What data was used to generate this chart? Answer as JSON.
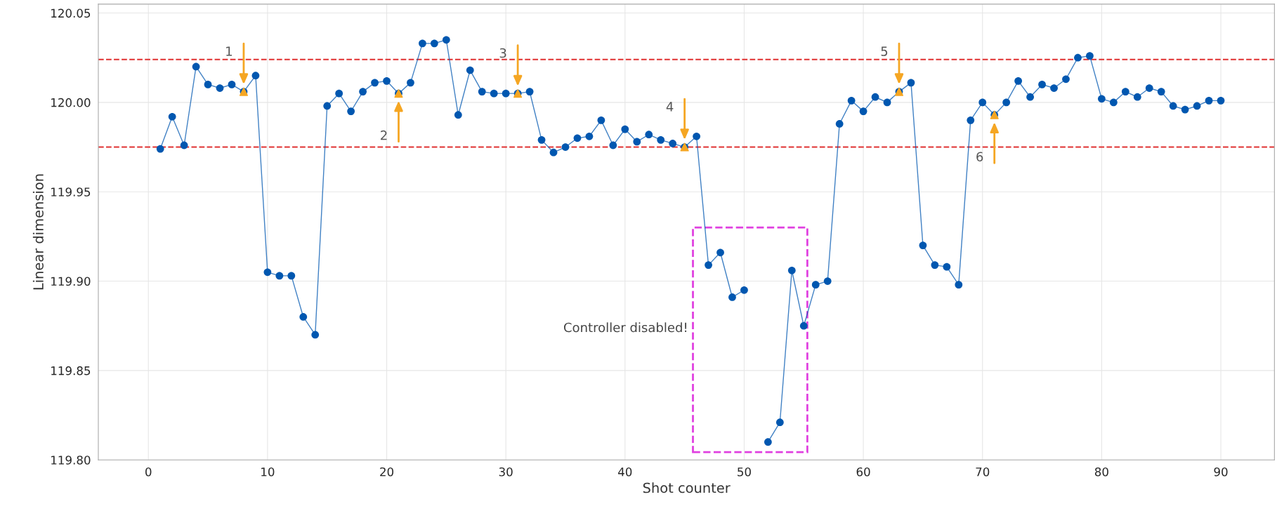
{
  "chart_data": {
    "type": "line",
    "xlabel": "Shot counter",
    "ylabel": "Linear dimension",
    "x": [
      1,
      2,
      3,
      4,
      5,
      6,
      7,
      8,
      9,
      10,
      11,
      12,
      13,
      14,
      15,
      16,
      17,
      18,
      19,
      20,
      21,
      22,
      23,
      24,
      25,
      26,
      27,
      28,
      29,
      30,
      31,
      32,
      33,
      34,
      35,
      36,
      37,
      38,
      39,
      40,
      41,
      42,
      43,
      44,
      45,
      46,
      47,
      48,
      49,
      50,
      51,
      52,
      53,
      54,
      55,
      56,
      57,
      58,
      59,
      60,
      61,
      62,
      63,
      64,
      65,
      66,
      67,
      68,
      69,
      70,
      71,
      72,
      73,
      74,
      75,
      76,
      77,
      78,
      79,
      80,
      81,
      82,
      83,
      84,
      85,
      86,
      87,
      88,
      89,
      90
    ],
    "series": [
      {
        "color": "#0057b0",
        "marker": "circle",
        "line_style": "solid",
        "values": [
          119.974,
          119.992,
          119.976,
          120.02,
          120.01,
          120.008,
          120.01,
          120.006,
          120.015,
          119.905,
          119.903,
          119.903,
          119.88,
          119.87,
          119.998,
          120.005,
          119.995,
          120.006,
          120.011,
          120.012,
          120.005,
          120.011,
          120.033,
          120.033,
          120.035,
          119.993,
          120.018,
          120.006,
          120.005,
          120.005,
          120.005,
          120.006,
          119.979,
          119.972,
          119.975,
          119.98,
          119.981,
          119.99,
          119.976,
          119.985,
          119.978,
          119.982,
          119.979,
          119.977,
          119.975,
          119.981,
          119.909,
          119.916,
          119.891,
          119.895,
          null,
          119.81,
          119.821,
          119.906,
          119.875,
          119.898,
          119.9,
          119.988,
          120.001,
          119.995,
          120.003,
          120.0,
          120.006,
          120.011,
          119.92,
          119.909,
          119.908,
          119.898,
          119.99,
          120.0,
          119.993,
          120.0,
          120.012,
          120.003,
          120.01,
          120.008,
          120.013,
          120.025,
          120.026,
          120.002,
          120.0,
          120.006,
          120.003,
          120.008,
          120.006,
          119.998,
          119.996,
          119.998,
          120.001,
          120.001
        ]
      },
      {
        "type": "scatter",
        "color": "#f5a623",
        "marker": "triangle",
        "x": [
          8,
          21,
          31,
          45,
          63,
          71
        ],
        "values": [
          120.006,
          120.005,
          120.005,
          119.975,
          120.006,
          119.993
        ]
      }
    ],
    "annotations": [
      "1",
      "2",
      "3",
      "4",
      "5",
      "6",
      "Controller disabled!"
    ],
    "ref_lines": [
      {
        "axis": "y",
        "value": 120.024,
        "color": "#e03030",
        "line_style": "dashed"
      },
      {
        "axis": "y",
        "value": 119.975,
        "color": "#e03030",
        "line_style": "dashed"
      }
    ],
    "xlim": [
      -4.2,
      94.5
    ],
    "ylim": [
      119.8,
      120.055
    ],
    "xticks": [
      0,
      10,
      20,
      30,
      40,
      50,
      60,
      70,
      80,
      90
    ],
    "yticks": [
      {
        "value": 119.8,
        "label": "119.80"
      },
      {
        "value": 119.85,
        "label": "119.85"
      },
      {
        "value": 119.9,
        "label": "119.90"
      },
      {
        "value": 119.95,
        "label": "119.95"
      },
      {
        "value": 120.0,
        "label": "120.00"
      },
      {
        "value": 120.05,
        "label": "120.05"
      }
    ],
    "grid": true
  }
}
